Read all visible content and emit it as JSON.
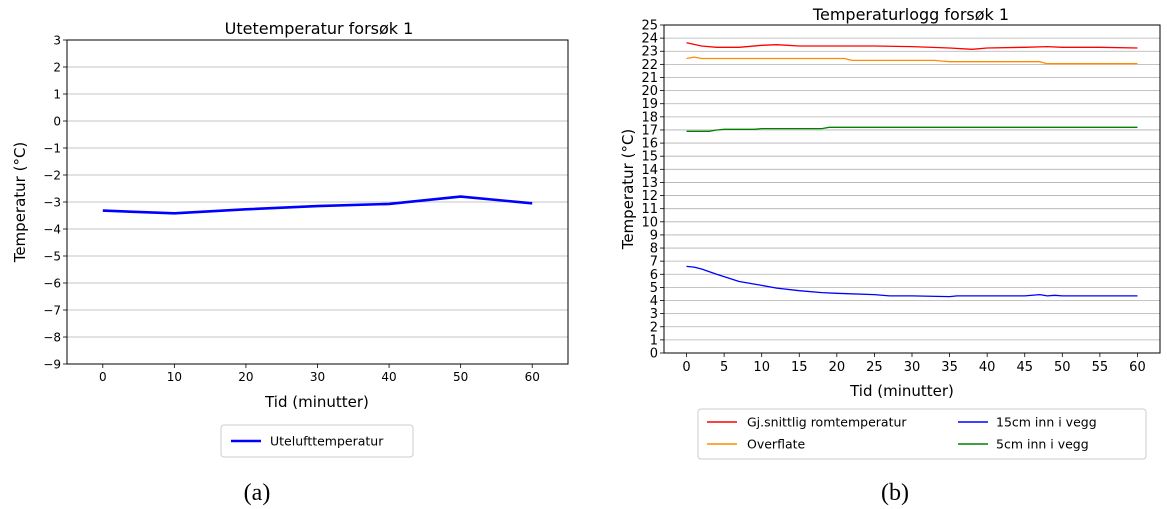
{
  "chart_data": [
    {
      "id": "a",
      "type": "line",
      "title": "Utetemperatur forsøk 1",
      "xlabel": "Tid (minutter)",
      "ylabel": "Temperatur (°C)",
      "xlim": [
        -5,
        65
      ],
      "ylim": [
        -9,
        3
      ],
      "xticks": [
        0,
        10,
        20,
        30,
        40,
        50,
        60
      ],
      "yticks": [
        -9,
        -8,
        -7,
        -6,
        -5,
        -4,
        -3,
        -2,
        -1,
        0,
        1,
        2,
        3
      ],
      "grid": "horizontal",
      "legend_position": "below",
      "caption": "(a)",
      "series": [
        {
          "name": "Utelufttemperatur",
          "color": "#0000ff",
          "x": [
            0,
            10,
            20,
            30,
            40,
            50,
            60
          ],
          "y": [
            -3.32,
            -3.42,
            -3.27,
            -3.15,
            -3.07,
            -2.8,
            -3.05
          ]
        }
      ]
    },
    {
      "id": "b",
      "type": "line",
      "title": "Temperaturlogg forsøk 1",
      "xlabel": "Tid (minutter)",
      "ylabel": "Temperatur (°C)",
      "xlim": [
        -3,
        63
      ],
      "ylim": [
        0,
        25
      ],
      "xticks": [
        0,
        5,
        10,
        15,
        20,
        25,
        30,
        35,
        40,
        45,
        50,
        55,
        60
      ],
      "yticks": [
        0,
        1,
        2,
        3,
        4,
        5,
        6,
        7,
        8,
        9,
        10,
        11,
        12,
        13,
        14,
        15,
        16,
        17,
        18,
        19,
        20,
        21,
        22,
        23,
        24,
        25
      ],
      "grid": "horizontal",
      "legend_position": "below",
      "caption": "(b)",
      "series": [
        {
          "name": "Gj.snittlig romtemperatur",
          "color": "#ff0000",
          "x": [
            0,
            2,
            4,
            7,
            10,
            12,
            15,
            20,
            25,
            30,
            35,
            38,
            40,
            45,
            48,
            50,
            55,
            60
          ],
          "y": [
            23.65,
            23.4,
            23.3,
            23.3,
            23.45,
            23.5,
            23.4,
            23.4,
            23.4,
            23.35,
            23.25,
            23.15,
            23.25,
            23.3,
            23.35,
            23.3,
            23.3,
            23.25
          ]
        },
        {
          "name": "Overflate",
          "color": "#ff8c00",
          "x": [
            0,
            1,
            2,
            5,
            10,
            15,
            21,
            22,
            30,
            33,
            34,
            35,
            40,
            47,
            48,
            55,
            60
          ],
          "y": [
            22.45,
            22.55,
            22.45,
            22.45,
            22.45,
            22.45,
            22.45,
            22.3,
            22.3,
            22.3,
            22.25,
            22.2,
            22.2,
            22.2,
            22.05,
            22.05,
            22.05
          ]
        },
        {
          "name": "15cm inn i vegg",
          "color": "#0000ff",
          "x": [
            0,
            1,
            2,
            4,
            7,
            10,
            12,
            15,
            18,
            20,
            25,
            27,
            30,
            35,
            36,
            40,
            45,
            47,
            48,
            49,
            50,
            55,
            60
          ],
          "y": [
            6.6,
            6.55,
            6.4,
            6.0,
            5.45,
            5.15,
            4.95,
            4.75,
            4.6,
            4.55,
            4.45,
            4.35,
            4.35,
            4.3,
            4.35,
            4.35,
            4.35,
            4.45,
            4.35,
            4.4,
            4.35,
            4.35,
            4.35
          ]
        },
        {
          "name": "5cm inn i vegg",
          "color": "#008000",
          "x": [
            0,
            1,
            2,
            3,
            4,
            5,
            9,
            10,
            15,
            18,
            19,
            20,
            30,
            40,
            50,
            60
          ],
          "y": [
            16.9,
            16.9,
            16.9,
            16.9,
            17.0,
            17.05,
            17.05,
            17.1,
            17.1,
            17.1,
            17.2,
            17.2,
            17.2,
            17.2,
            17.2,
            17.2
          ]
        }
      ]
    }
  ]
}
